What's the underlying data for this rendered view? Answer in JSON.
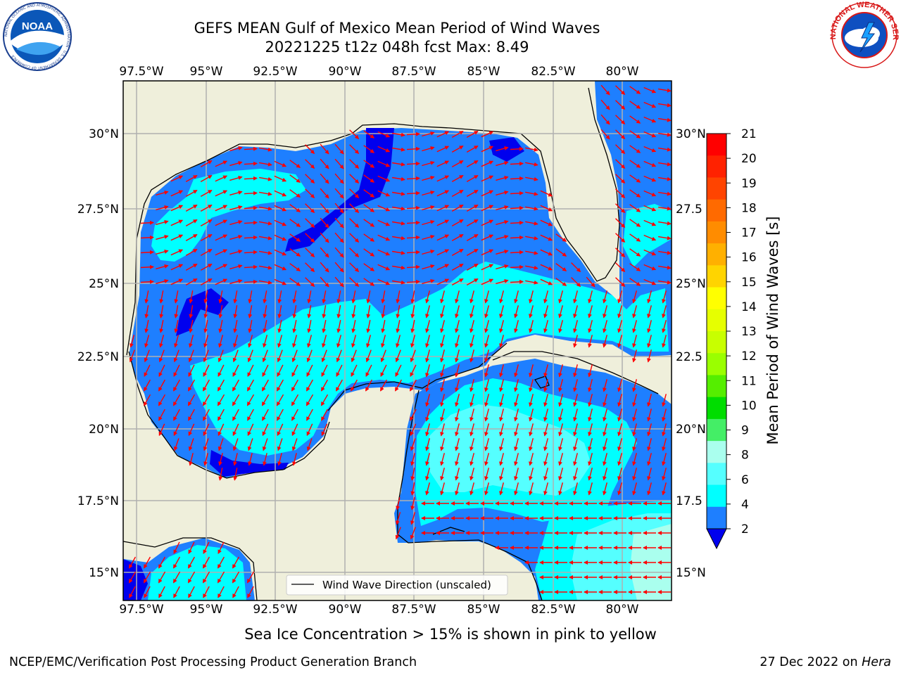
{
  "title_line1": "GEFS MEAN Gulf of Mexico Mean Period of Wind Waves",
  "title_line2": "20221225 t12z 048h fcst   Max: 8.49",
  "lon_labels": [
    "97.5°W",
    "95°W",
    "92.5°W",
    "90°W",
    "87.5°W",
    "85°W",
    "82.5°W",
    "80°W"
  ],
  "lat_labels_left": [
    "30°N",
    "27.5°N",
    "25°N",
    "22.5°N",
    "20°N",
    "17.5°N",
    "15°N"
  ],
  "lat_labels_right": [
    "30°N",
    "27.5",
    "25°N",
    "22.5",
    "20°N",
    "17.5",
    "15°N"
  ],
  "legend_label": "Wind Wave Direction (unscaled)",
  "colorbar": {
    "title": "Mean Period of Wind Waves [s]",
    "ticks": [
      "21",
      "20",
      "19",
      "18",
      "17",
      "16",
      "15",
      "14",
      "13",
      "12",
      "11",
      "10",
      "9",
      "8",
      "6",
      "4",
      "2"
    ],
    "colors": [
      "#ff0000",
      "#ff2200",
      "#ff4400",
      "#ff6a00",
      "#ff8c00",
      "#ffb000",
      "#ffd400",
      "#ffff00",
      "#e6ff00",
      "#c8ff00",
      "#9aff00",
      "#55ee00",
      "#00dd00",
      "#44ee66",
      "#aaffee",
      "#55ffff",
      "#00ffff",
      "#1e7fff"
    ],
    "under_color": "#0000ee"
  },
  "colors": {
    "land": "#efefdb",
    "band_2_4": "#1e7fff",
    "band_lt2": "#0000ee",
    "band_4_6": "#00ffff",
    "band_6_8": "#55ffff",
    "band_8_9": "#aaffee",
    "arrows": "#ff0000",
    "grid": "#b0b0b0"
  },
  "sea_ice_note": "Sea Ice Concentration > 15% is shown in pink to yellow",
  "footer_left": "NCEP/EMC/Verification Post Processing Product Generation Branch",
  "footer_date": "27 Dec 2022 on ",
  "footer_machine": "Hera",
  "logos": {
    "left": "NOAA",
    "left_ring": "NATIONAL OCEANIC AND ATMOSPHERIC ADMINISTRATION · U.S. DEPARTMENT OF COMMERCE",
    "right_ring": "NATIONAL WEATHER SERVICE"
  }
}
